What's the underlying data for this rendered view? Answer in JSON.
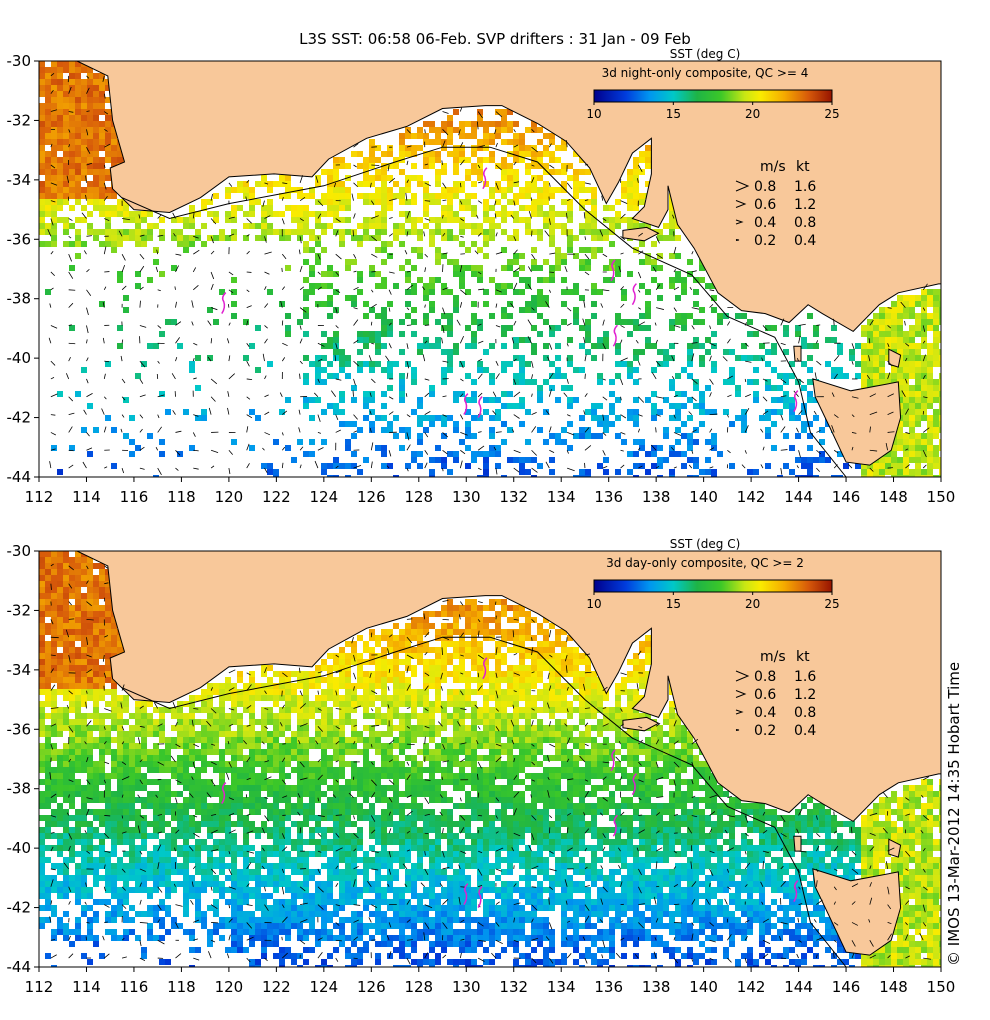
{
  "title": "L3S SST: 06:58 06-Feb. SVP drifters : 31 Jan - 09 Feb",
  "credit": "© IMOS 13-Mar-2012 14:35 Hobart Time",
  "colors": {
    "land": "#f8c89a",
    "drifter": "#e020d0",
    "arrow": "#000000"
  },
  "chart_data": [
    {
      "type": "heatmap",
      "panel": "top",
      "colorbar": {
        "title": "SST (deg C)",
        "subtitle": "3d night-only composite, QC >= 4",
        "min": 10,
        "max": 25,
        "ticks": [
          10,
          15,
          20,
          25
        ]
      },
      "xlim": [
        112,
        150
      ],
      "ylim": [
        -44,
        -30
      ],
      "x_ticks": [
        112,
        114,
        116,
        118,
        120,
        122,
        124,
        126,
        128,
        130,
        132,
        134,
        136,
        138,
        140,
        142,
        144,
        146,
        148,
        150
      ],
      "y_ticks": [
        -30,
        -32,
        -34,
        -36,
        -38,
        -40,
        -42,
        -44
      ],
      "legend": {
        "header_ms": "m/s",
        "header_kt": "kt",
        "rows": [
          {
            "ms": "0.8",
            "kt": "1.6"
          },
          {
            "ms": "0.6",
            "kt": "1.2"
          },
          {
            "ms": "0.4",
            "kt": "0.8"
          },
          {
            "ms": "0.2",
            "kt": "0.4"
          }
        ]
      }
    },
    {
      "type": "heatmap",
      "panel": "bottom",
      "colorbar": {
        "title": "SST (deg C)",
        "subtitle": "3d day-only composite, QC >= 2",
        "min": 10,
        "max": 25,
        "ticks": [
          10,
          15,
          20,
          25
        ]
      },
      "xlim": [
        112,
        150
      ],
      "ylim": [
        -44,
        -30
      ],
      "x_ticks": [
        112,
        114,
        116,
        118,
        120,
        122,
        124,
        126,
        128,
        130,
        132,
        134,
        136,
        138,
        140,
        142,
        144,
        146,
        148,
        150
      ],
      "y_ticks": [
        -30,
        -32,
        -34,
        -36,
        -38,
        -40,
        -42,
        -44
      ],
      "legend": {
        "header_ms": "m/s",
        "header_kt": "kt",
        "rows": [
          {
            "ms": "0.8",
            "kt": "1.6"
          },
          {
            "ms": "0.6",
            "kt": "1.2"
          },
          {
            "ms": "0.4",
            "kt": "0.8"
          },
          {
            "ms": "0.2",
            "kt": "0.4"
          }
        ]
      }
    }
  ]
}
